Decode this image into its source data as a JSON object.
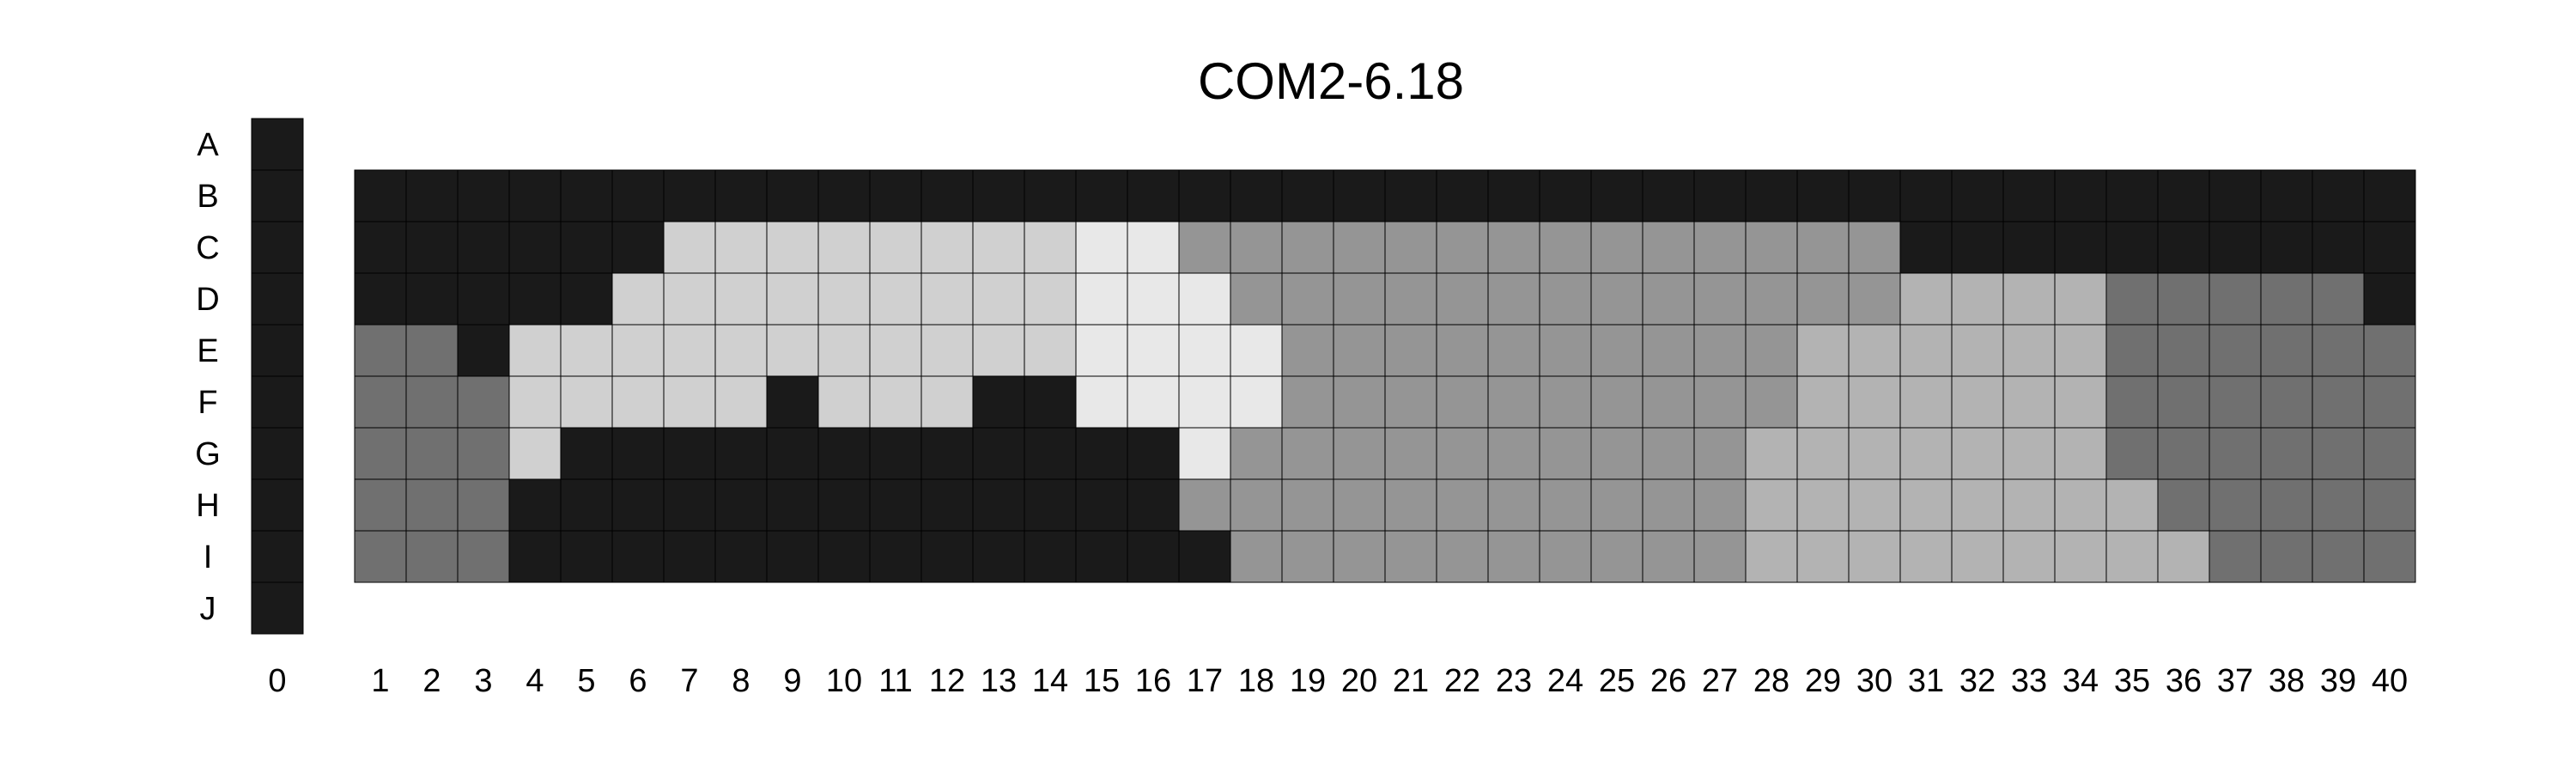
{
  "chart_data": {
    "type": "heatmap",
    "title": "COM2-6.18",
    "rows": [
      "A",
      "B",
      "C",
      "D",
      "E",
      "F",
      "G",
      "H",
      "I",
      "J"
    ],
    "columns": [
      "0",
      "1",
      "2",
      "3",
      "4",
      "5",
      "6",
      "7",
      "8",
      "9",
      "10",
      "11",
      "12",
      "13",
      "14",
      "15",
      "16",
      "17",
      "18",
      "19",
      "20",
      "21",
      "22",
      "23",
      "24",
      "25",
      "26",
      "27",
      "28",
      "29",
      "30",
      "31",
      "32",
      "33",
      "34",
      "35",
      "36",
      "37",
      "38",
      "39",
      "40"
    ],
    "legend": "none",
    "grid": true,
    "colors": {
      "0": "#1a1a1a",
      "1": "#707070",
      "2": "#959595",
      "3": "#b3b3b3",
      "4": "#d0d0d0",
      "5": "#e8e8e8"
    },
    "column_0": {
      "rows": [
        "A",
        "B",
        "C",
        "D",
        "E",
        "F",
        "G",
        "H",
        "I",
        "J"
      ],
      "values": [
        0,
        0,
        0,
        0,
        0,
        0,
        0,
        0,
        0,
        0
      ]
    },
    "grid_rows": [
      "B",
      "C",
      "D",
      "E",
      "F",
      "G",
      "H",
      "I"
    ],
    "grid_columns": [
      "1",
      "2",
      "3",
      "4",
      "5",
      "6",
      "7",
      "8",
      "9",
      "10",
      "11",
      "12",
      "13",
      "14",
      "15",
      "16",
      "17",
      "18",
      "19",
      "20",
      "21",
      "22",
      "23",
      "24",
      "25",
      "26",
      "27",
      "28",
      "29",
      "30",
      "31",
      "32",
      "33",
      "34",
      "35",
      "36",
      "37",
      "38",
      "39",
      "40"
    ],
    "grid_values": [
      [
        0,
        0,
        0,
        0,
        0,
        0,
        0,
        0,
        0,
        0,
        0,
        0,
        0,
        0,
        0,
        0,
        0,
        0,
        0,
        0,
        0,
        0,
        0,
        0,
        0,
        0,
        0,
        0,
        0,
        0,
        0,
        0,
        0,
        0,
        0,
        0,
        0,
        0,
        0,
        0
      ],
      [
        0,
        0,
        0,
        0,
        0,
        0,
        4,
        4,
        4,
        4,
        4,
        4,
        4,
        4,
        5,
        5,
        2,
        2,
        2,
        2,
        2,
        2,
        2,
        2,
        2,
        2,
        2,
        2,
        2,
        2,
        0,
        0,
        0,
        0,
        0,
        0,
        0,
        0,
        0,
        0
      ],
      [
        0,
        0,
        0,
        0,
        0,
        4,
        4,
        4,
        4,
        4,
        4,
        4,
        4,
        4,
        5,
        5,
        5,
        2,
        2,
        2,
        2,
        2,
        2,
        2,
        2,
        2,
        2,
        2,
        2,
        2,
        3,
        3,
        3,
        3,
        1,
        1,
        1,
        1,
        1,
        0
      ],
      [
        1,
        1,
        0,
        4,
        4,
        4,
        4,
        4,
        4,
        4,
        4,
        4,
        4,
        4,
        5,
        5,
        5,
        5,
        2,
        2,
        2,
        2,
        2,
        2,
        2,
        2,
        2,
        2,
        3,
        3,
        3,
        3,
        3,
        3,
        1,
        1,
        1,
        1,
        1,
        1
      ],
      [
        1,
        1,
        1,
        4,
        4,
        4,
        4,
        4,
        0,
        4,
        4,
        4,
        0,
        0,
        5,
        5,
        5,
        5,
        2,
        2,
        2,
        2,
        2,
        2,
        2,
        2,
        2,
        2,
        3,
        3,
        3,
        3,
        3,
        3,
        1,
        1,
        1,
        1,
        1,
        1
      ],
      [
        1,
        1,
        1,
        4,
        0,
        0,
        0,
        0,
        0,
        0,
        0,
        0,
        0,
        0,
        0,
        0,
        5,
        2,
        2,
        2,
        2,
        2,
        2,
        2,
        2,
        2,
        2,
        3,
        3,
        3,
        3,
        3,
        3,
        3,
        1,
        1,
        1,
        1,
        1,
        1
      ],
      [
        1,
        1,
        1,
        0,
        0,
        0,
        0,
        0,
        0,
        0,
        0,
        0,
        0,
        0,
        0,
        0,
        2,
        2,
        2,
        2,
        2,
        2,
        2,
        2,
        2,
        2,
        2,
        3,
        3,
        3,
        3,
        3,
        3,
        3,
        3,
        1,
        1,
        1,
        1,
        1
      ],
      [
        1,
        1,
        1,
        0,
        0,
        0,
        0,
        0,
        0,
        0,
        0,
        0,
        0,
        0,
        0,
        0,
        0,
        2,
        2,
        2,
        2,
        2,
        2,
        2,
        2,
        2,
        2,
        3,
        3,
        3,
        3,
        3,
        3,
        3,
        3,
        3,
        1,
        1,
        1,
        1
      ]
    ]
  }
}
